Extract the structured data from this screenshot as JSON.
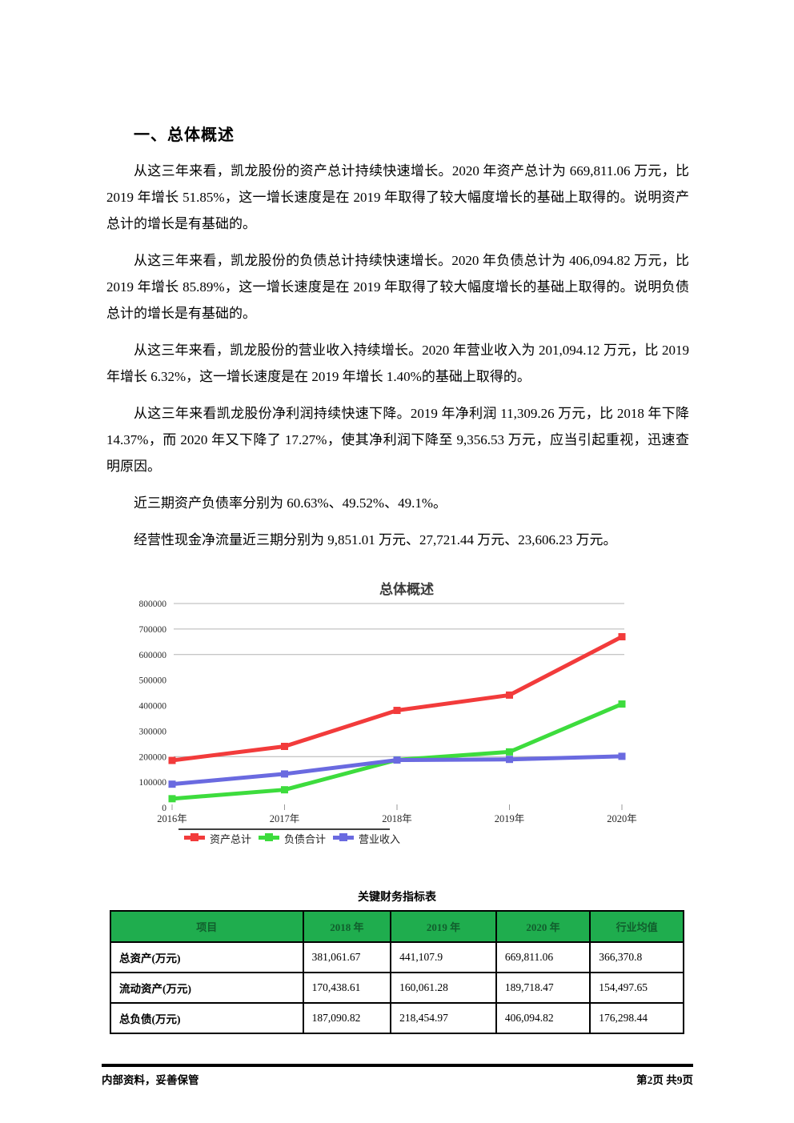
{
  "document": {
    "heading": "一、总体概述",
    "paragraphs": [
      "从这三年来看，凯龙股份的资产总计持续快速增长。2020 年资产总计为 669,811.06 万元，比 2019 年增长 51.85%，这一增长速度是在 2019 年取得了较大幅度增长的基础上取得的。说明资产总计的增长是有基础的。",
      "从这三年来看，凯龙股份的负债总计持续快速增长。2020 年负债总计为 406,094.82 万元，比 2019 年增长 85.89%，这一增长速度是在 2019 年取得了较大幅度增长的基础上取得的。说明负债总计的增长是有基础的。",
      "从这三年来看，凯龙股份的营业收入持续增长。2020 年营业收入为 201,094.12 万元，比 2019 年增长 6.32%，这一增长速度是在 2019 年增长 1.40%的基础上取得的。",
      "从这三年来看凯龙股份净利润持续快速下降。2019 年净利润 11,309.26 万元，比 2018 年下降 14.37%，而 2020 年又下降了 17.27%，使其净利润下降至 9,356.53 万元，应当引起重视，迅速查明原因。",
      "近三期资产负债率分别为 60.63%、49.52%、49.1%。",
      "经营性现金净流量近三期分别为 9,851.01 万元、27,721.44 万元、23,606.23 万元。"
    ],
    "footer": {
      "left": "内部资料，妥善保管",
      "right": "第2页 共9页"
    }
  },
  "chart_data": {
    "type": "line",
    "title": "总体概述",
    "categories": [
      "2016年",
      "2017年",
      "2018年",
      "2019年",
      "2020年"
    ],
    "series": [
      {
        "name": "资产总计",
        "color": "#f23b3b",
        "values": [
          185000,
          240000,
          381062,
          441108,
          669811
        ]
      },
      {
        "name": "负债合计",
        "color": "#3ddc3d",
        "values": [
          35000,
          70000,
          187091,
          218455,
          406095
        ]
      },
      {
        "name": "营业收入",
        "color": "#6a6ae0",
        "values": [
          92000,
          132000,
          186500,
          189140,
          201094
        ]
      }
    ],
    "ylim": [
      0,
      800000
    ],
    "ytick_step": 100000,
    "gridlines_at": [
      800000,
      700000,
      600000,
      200000
    ],
    "grid": "partial-horizontal",
    "legend_position": "bottom",
    "xlabel": "",
    "ylabel": ""
  },
  "table": {
    "title": "关键财务指标表",
    "headers": [
      "项目",
      "2018 年",
      "2019 年",
      "2020 年",
      "行业均值"
    ],
    "rows": [
      {
        "label": "总资产(万元)",
        "values": [
          "381,061.67",
          "441,107.9",
          "669,811.06",
          "366,370.8"
        ]
      },
      {
        "label": "流动资产(万元)",
        "values": [
          "170,438.61",
          "160,061.28",
          "189,718.47",
          "154,497.65"
        ]
      },
      {
        "label": "总负债(万元)",
        "values": [
          "187,090.82",
          "218,454.97",
          "406,094.82",
          "176,298.44"
        ]
      }
    ],
    "header_bg": "#1fad4e",
    "header_text_color": "#115e2d"
  }
}
